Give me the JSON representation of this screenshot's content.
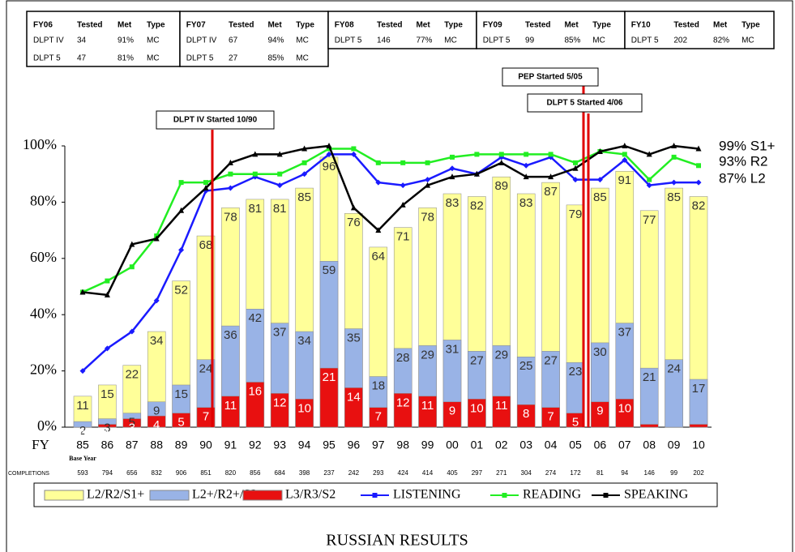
{
  "chart_data": {
    "type": "bar",
    "title": "RUSSIAN RESULTS",
    "x_label": "FY",
    "base_year_label": "Base Year",
    "completions_label": "COMPLETIONS",
    "completions": [
      593,
      794,
      656,
      832,
      906,
      851,
      820,
      856,
      684,
      398,
      237,
      242,
      293,
      424,
      414,
      405,
      297,
      271,
      304,
      274,
      172,
      81,
      94,
      146,
      99,
      202
    ],
    "categories": [
      "85",
      "86",
      "87",
      "88",
      "89",
      "90",
      "91",
      "92",
      "93",
      "94",
      "95",
      "96",
      "97",
      "98",
      "99",
      "00",
      "01",
      "02",
      "03",
      "04",
      "05",
      "06",
      "07",
      "08",
      "09",
      "10"
    ],
    "ylim": [
      0,
      100
    ],
    "yticks": [
      {
        "value": 0,
        "label": "0%"
      },
      {
        "value": 20,
        "label": "20%"
      },
      {
        "value": 40,
        "label": "40%"
      },
      {
        "value": 60,
        "label": "60%"
      },
      {
        "value": 80,
        "label": "80%"
      },
      {
        "value": 100,
        "label": "100%"
      }
    ],
    "series": [
      {
        "name": "L2/R2/S1+",
        "type": "bar",
        "color": "#ffff99",
        "values": [
          11,
          15,
          22,
          34,
          52,
          68,
          78,
          81,
          81,
          85,
          96,
          76,
          64,
          71,
          78,
          83,
          82,
          89,
          83,
          87,
          79,
          85,
          91,
          77,
          85,
          82
        ]
      },
      {
        "name": "L2+/R2+/S2",
        "type": "bar",
        "color": "#99b3e6",
        "values": [
          2,
          3,
          5,
          9,
          15,
          24,
          36,
          42,
          37,
          34,
          59,
          35,
          18,
          28,
          29,
          31,
          27,
          29,
          25,
          27,
          23,
          30,
          37,
          21,
          24,
          17
        ]
      },
      {
        "name": "L3/R3/S2",
        "type": "bar",
        "color": "#e81010",
        "values": [
          0,
          1,
          3,
          4,
          5,
          7,
          11,
          16,
          12,
          10,
          21,
          14,
          7,
          12,
          11,
          9,
          10,
          11,
          8,
          7,
          5,
          9,
          10,
          1,
          0,
          1
        ],
        "value_labels": [
          "0",
          "1",
          "3",
          "4",
          "5",
          "7",
          "11",
          "16",
          "12",
          "10",
          "21",
          "14",
          "7",
          "12",
          "11",
          "9",
          "10",
          "11",
          "8",
          "7",
          "5",
          "9",
          "10",
          null,
          "0",
          "1"
        ]
      },
      {
        "name": "LISTENING",
        "type": "line",
        "marker": "diamond",
        "color": "#1a1aff",
        "values": [
          20,
          28,
          34,
          45,
          63,
          84,
          85,
          89,
          86,
          90,
          97,
          97,
          87,
          86,
          88,
          92,
          90,
          96,
          93,
          96,
          88,
          88,
          95,
          86,
          87,
          87
        ]
      },
      {
        "name": "READING",
        "type": "line",
        "marker": "square",
        "color": "#22ee22",
        "values": [
          48,
          52,
          57,
          68,
          87,
          87,
          90,
          90,
          90,
          94,
          99,
          99,
          94,
          94,
          94,
          96,
          97,
          97,
          97,
          97,
          94,
          98,
          97,
          88,
          96,
          93
        ]
      },
      {
        "name": "SPEAKING",
        "type": "line",
        "marker": "triangle",
        "color": "#000000",
        "values": [
          48,
          47,
          65,
          67,
          77,
          85,
          94,
          97,
          97,
          99,
          100,
          78,
          70,
          79,
          86,
          89,
          90,
          94,
          89,
          89,
          92,
          98,
          100,
          97,
          100,
          99
        ]
      }
    ],
    "end_labels": [
      "99% S1+",
      "93% R2",
      "87% L2"
    ],
    "annotations": [
      "DLPT IV Started 10/90",
      "PEP Started 5/05",
      "DLPT 5 Started 4/06"
    ],
    "tables": [
      {
        "header": [
          "FY06",
          "Tested",
          "Met",
          "Type"
        ],
        "rows": [
          [
            "DLPT IV",
            "34",
            "91%",
            "MC"
          ],
          [
            "DLPT 5",
            "47",
            "81%",
            "MC"
          ]
        ]
      },
      {
        "header": [
          "FY07",
          "Tested",
          "Met",
          "Type"
        ],
        "rows": [
          [
            "DLPT IV",
            "67",
            "94%",
            "MC"
          ],
          [
            "DLPT 5",
            "27",
            "85%",
            "MC"
          ]
        ]
      },
      {
        "header": [
          "FY08",
          "Tested",
          "Met",
          "Type"
        ],
        "rows": [
          [
            "DLPT 5",
            "146",
            "77%",
            "MC"
          ]
        ]
      },
      {
        "header": [
          "FY09",
          "Tested",
          "Met",
          "Type"
        ],
        "rows": [
          [
            "DLPT 5",
            "99",
            "85%",
            "MC"
          ]
        ]
      },
      {
        "header": [
          "FY10",
          "Tested",
          "Met",
          "Type"
        ],
        "rows": [
          [
            "DLPT 5",
            "202",
            "82%",
            "MC"
          ]
        ]
      }
    ]
  }
}
